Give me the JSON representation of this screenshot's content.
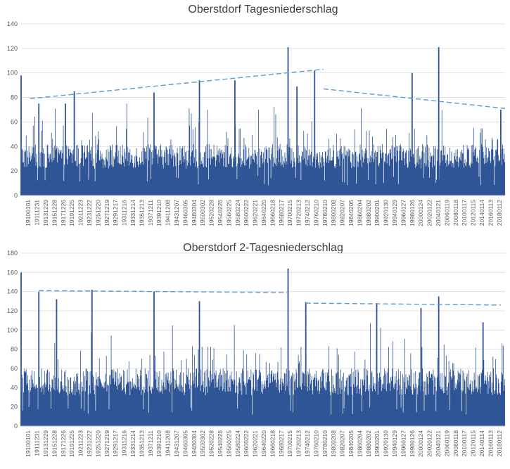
{
  "colors": {
    "bars": "#2f5597",
    "trend": "#5b9bd5",
    "axis": "#bfbfbf",
    "grid": "#d9d9d9"
  },
  "chart_data": [
    {
      "type": "bar",
      "title": "Oberstdorf Tagesniederschlag",
      "xlabel": "",
      "ylabel": "",
      "ylim": [
        0,
        140
      ],
      "yticks": [
        0,
        20,
        40,
        60,
        80,
        100,
        120,
        140
      ],
      "grid": true,
      "legend": "none",
      "x_range": [
        "19100101",
        "20181231"
      ],
      "tick_labels": [
        "19100101",
        "19111231",
        "19131229",
        "19151228",
        "19171226",
        "19191225",
        "19211223",
        "19231222",
        "19251220",
        "19271219",
        "19291217",
        "19311216",
        "19331214",
        "19351213",
        "19371211",
        "19391210",
        "19411208",
        "19431207",
        "19460305",
        "19480304",
        "19500302",
        "19520228",
        "19540226",
        "19560225",
        "19580224",
        "19600222",
        "19620221",
        "19640220",
        "19660218",
        "19680217",
        "19700215",
        "19720213",
        "19740212",
        "19760210",
        "19780210",
        "19800208",
        "19820207",
        "19840205",
        "19860204",
        "19880202",
        "19900201",
        "19920130",
        "19940129",
        "19960127",
        "19980126",
        "20000124",
        "20020122",
        "20040121",
        "20060119",
        "20080118",
        "20100117",
        "20120115",
        "20140114",
        "20160113",
        "20180112"
      ],
      "peaks": [
        {
          "date": "19100101",
          "value": 98
        },
        {
          "date": "19131229",
          "value": 75
        },
        {
          "date": "19191225",
          "value": 75
        },
        {
          "date": "19211223",
          "value": 85
        },
        {
          "date": "19391210",
          "value": 84
        },
        {
          "date": "19500302",
          "value": 94
        },
        {
          "date": "19580224",
          "value": 94
        },
        {
          "date": "19700215",
          "value": 121
        },
        {
          "date": "19720213",
          "value": 89
        },
        {
          "date": "19760210",
          "value": 102
        },
        {
          "date": "19980126",
          "value": 100
        },
        {
          "date": "20040121",
          "value": 121
        },
        {
          "date": "20180112",
          "value": 70
        }
      ],
      "trend_segments": [
        {
          "x": [
            "19111231",
            "19780210"
          ],
          "y": [
            79,
            103
          ]
        },
        {
          "x": [
            "19780210",
            "20181231"
          ],
          "y": [
            87,
            71
          ]
        }
      ]
    },
    {
      "type": "bar",
      "title": "Oberstdorf 2-Tagesniederschlag",
      "xlabel": "",
      "ylabel": "",
      "ylim": [
        0,
        180
      ],
      "yticks": [
        0,
        20,
        40,
        60,
        80,
        100,
        120,
        140,
        160,
        180
      ],
      "grid": true,
      "legend": "none",
      "x_range": [
        "19100101",
        "20181231"
      ],
      "tick_labels": [
        "19100101",
        "19111231",
        "19131229",
        "19151228",
        "19171226",
        "19191225",
        "19211223",
        "19231222",
        "19251220",
        "19271219",
        "19291217",
        "19311216",
        "19331214",
        "19351213",
        "19371211",
        "19391210",
        "19411208",
        "19431207",
        "19460305",
        "19480304",
        "19500302",
        "19520228",
        "19540226",
        "19560225",
        "19580224",
        "19600222",
        "19620221",
        "19640220",
        "19660218",
        "19680217",
        "19700215",
        "19720213",
        "19740212",
        "19760210",
        "19780210",
        "19800208",
        "19820207",
        "19840205",
        "19860204",
        "19880202",
        "19900201",
        "19920130",
        "19940129",
        "19960127",
        "19980126",
        "20000124",
        "20020122",
        "20040121",
        "20060119",
        "20080118",
        "20100117",
        "20120115",
        "20140114",
        "20160113",
        "20180112"
      ],
      "peaks": [
        {
          "date": "19100101",
          "value": 160
        },
        {
          "date": "19131229",
          "value": 140
        },
        {
          "date": "19171226",
          "value": 132
        },
        {
          "date": "19251220",
          "value": 142
        },
        {
          "date": "19391210",
          "value": 140
        },
        {
          "date": "19500302",
          "value": 130
        },
        {
          "date": "19700215",
          "value": 164
        },
        {
          "date": "19740212",
          "value": 129
        },
        {
          "date": "19900201",
          "value": 128
        },
        {
          "date": "20000124",
          "value": 123
        },
        {
          "date": "20040121",
          "value": 135
        },
        {
          "date": "20140114",
          "value": 108
        }
      ],
      "trend_segments": [
        {
          "x": [
            "19131229",
            "19700215"
          ],
          "y": [
            141,
            139
          ]
        },
        {
          "x": [
            "19740212",
            "20180112"
          ],
          "y": [
            128,
            126
          ]
        }
      ]
    }
  ]
}
